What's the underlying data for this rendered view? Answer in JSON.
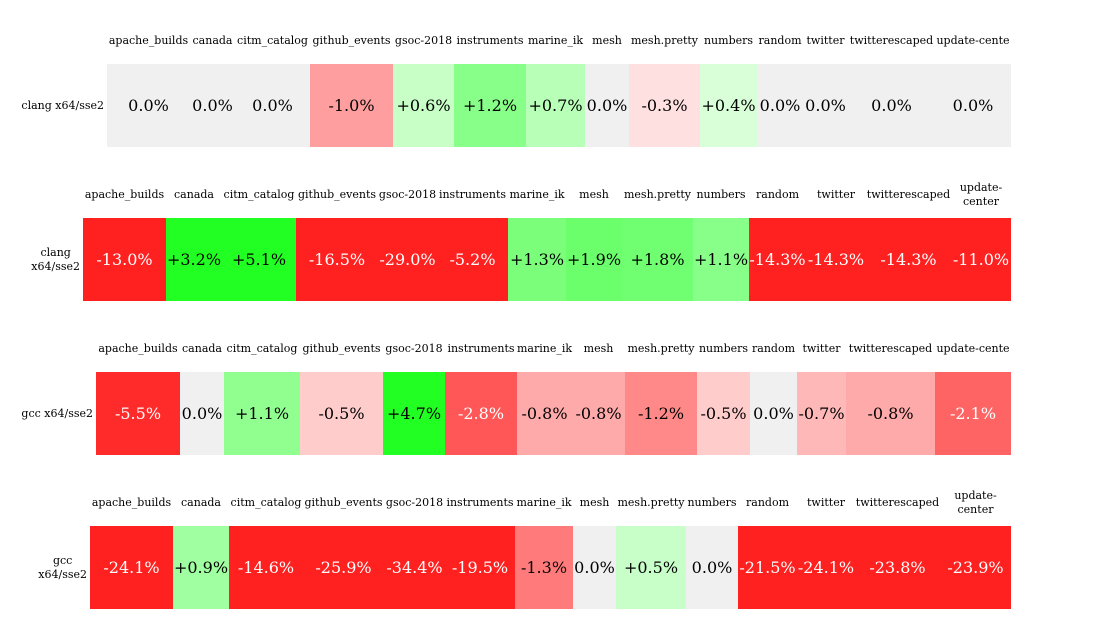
{
  "tables": [
    {
      "row_label": "clang x64/sse2",
      "columns": [
        "apache_builds",
        "canada",
        "citm_catalog",
        "github_events",
        "gsoc-2018",
        "instruments",
        "marine_ik",
        "mesh",
        "mesh.pretty",
        "numbers",
        "random",
        "twitter",
        "twitterescaped",
        "update-cente"
      ],
      "cells": [
        {
          "text": "0.0%",
          "color": "#f0f0f0"
        },
        {
          "text": "0.0%",
          "color": "#f0f0f0"
        },
        {
          "text": "0.0%",
          "color": "#f0f0f0"
        },
        {
          "text": "-1.0%",
          "color": "#ff9e9e"
        },
        {
          "text": "+0.6%",
          "color": "#c7ffc7"
        },
        {
          "text": "+1.2%",
          "color": "#88ff88"
        },
        {
          "text": "+0.7%",
          "color": "#b8ffb8"
        },
        {
          "text": "0.0%",
          "color": "#f0f0f0"
        },
        {
          "text": "-0.3%",
          "color": "#ffe0e0"
        },
        {
          "text": "+0.4%",
          "color": "#d8ffd8"
        },
        {
          "text": "0.0%",
          "color": "#f0f0f0"
        },
        {
          "text": "0.0%",
          "color": "#f0f0f0"
        },
        {
          "text": "0.0%",
          "color": "#f0f0f0"
        },
        {
          "text": "0.0%",
          "color": "#f0f0f0"
        }
      ]
    },
    {
      "row_label": "clang\nx64/sse2",
      "columns": [
        "apache_builds",
        "canada",
        "citm_catalog",
        "github_events",
        "gsoc-2018",
        "instruments",
        "marine_ik",
        "mesh",
        "mesh.pretty",
        "numbers",
        "random",
        "twitter",
        "twitterescaped",
        "update-\ncenter"
      ],
      "cells": [
        {
          "text": "-13.0%",
          "color": "#ff2020"
        },
        {
          "text": "+3.2%",
          "color": "#22ff22"
        },
        {
          "text": "+5.1%",
          "color": "#22ff22"
        },
        {
          "text": "-16.5%",
          "color": "#ff2020"
        },
        {
          "text": "-29.0%",
          "color": "#ff2020"
        },
        {
          "text": "-5.2%",
          "color": "#ff2020"
        },
        {
          "text": "+1.3%",
          "color": "#7bff7b"
        },
        {
          "text": "+1.9%",
          "color": "#6cff6c"
        },
        {
          "text": "+1.8%",
          "color": "#70ff70"
        },
        {
          "text": "+1.1%",
          "color": "#88ff88"
        },
        {
          "text": "-14.3%",
          "color": "#ff2020"
        },
        {
          "text": "-14.3%",
          "color": "#ff2020"
        },
        {
          "text": "-14.3%",
          "color": "#ff2020"
        },
        {
          "text": "-11.0%",
          "color": "#ff2020"
        }
      ]
    },
    {
      "row_label": "gcc x64/sse2",
      "columns": [
        "apache_builds",
        "canada",
        "citm_catalog",
        "github_events",
        "gsoc-2018",
        "instruments",
        "marine_ik",
        "mesh",
        "mesh.pretty",
        "numbers",
        "random",
        "twitter",
        "twitterescaped",
        "update-cente"
      ],
      "cells": [
        {
          "text": "-5.5%",
          "color": "#ff2a2a"
        },
        {
          "text": "0.0%",
          "color": "#f0f0f0"
        },
        {
          "text": "+1.1%",
          "color": "#90ff90"
        },
        {
          "text": "-0.5%",
          "color": "#ffcccc"
        },
        {
          "text": "+4.7%",
          "color": "#22ff22"
        },
        {
          "text": "-2.8%",
          "color": "#ff5757"
        },
        {
          "text": "-0.8%",
          "color": "#ffaaaa"
        },
        {
          "text": "-0.8%",
          "color": "#ffaaaa"
        },
        {
          "text": "-1.2%",
          "color": "#ff8888"
        },
        {
          "text": "-0.5%",
          "color": "#ffcccc"
        },
        {
          "text": "0.0%",
          "color": "#f0f0f0"
        },
        {
          "text": "-0.7%",
          "color": "#ffb8b8"
        },
        {
          "text": "-0.8%",
          "color": "#ffaaaa"
        },
        {
          "text": "-2.1%",
          "color": "#ff6464"
        }
      ]
    },
    {
      "row_label": "gcc\nx64/sse2",
      "columns": [
        "apache_builds",
        "canada",
        "citm_catalog",
        "github_events",
        "gsoc-2018",
        "instruments",
        "marine_ik",
        "mesh",
        "mesh.pretty",
        "numbers",
        "random",
        "twitter",
        "twitterescaped",
        "update-\ncenter"
      ],
      "cells": [
        {
          "text": "-24.1%",
          "color": "#ff2020"
        },
        {
          "text": "+0.9%",
          "color": "#a0ffa0"
        },
        {
          "text": "-14.6%",
          "color": "#ff2020"
        },
        {
          "text": "-25.9%",
          "color": "#ff2020"
        },
        {
          "text": "-34.4%",
          "color": "#ff2020"
        },
        {
          "text": "-19.5%",
          "color": "#ff2020"
        },
        {
          "text": "-1.3%",
          "color": "#ff7a7a"
        },
        {
          "text": "0.0%",
          "color": "#f0f0f0"
        },
        {
          "text": "+0.5%",
          "color": "#c8ffc8"
        },
        {
          "text": "0.0%",
          "color": "#f0f0f0"
        },
        {
          "text": "-21.5%",
          "color": "#ff2020"
        },
        {
          "text": "-24.1%",
          "color": "#ff2020"
        },
        {
          "text": "-23.8%",
          "color": "#ff2020"
        },
        {
          "text": "-23.9%",
          "color": "#ff2020"
        }
      ]
    }
  ]
}
